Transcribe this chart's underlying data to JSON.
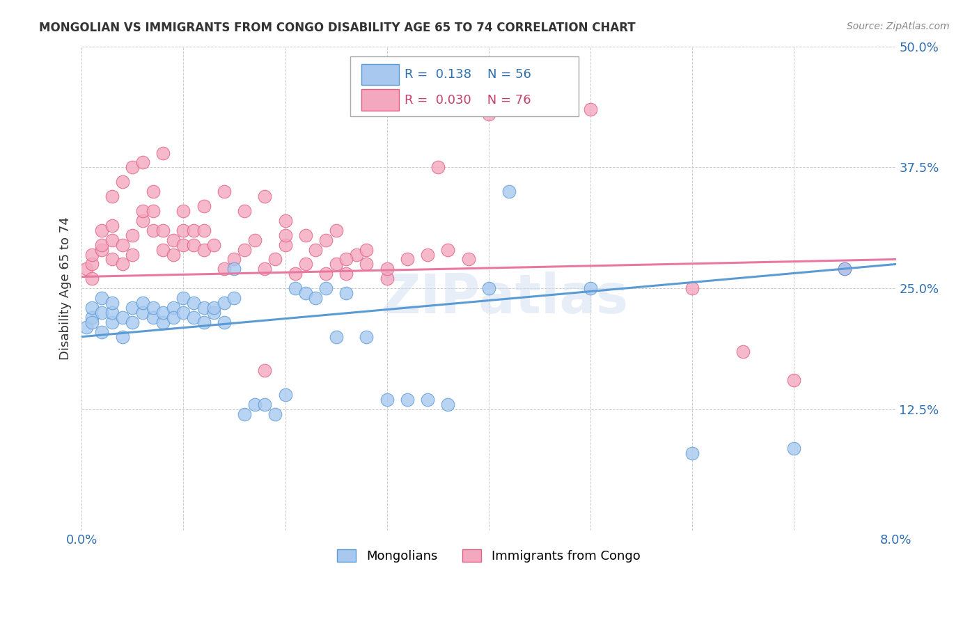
{
  "title": "MONGOLIAN VS IMMIGRANTS FROM CONGO DISABILITY AGE 65 TO 74 CORRELATION CHART",
  "source": "Source: ZipAtlas.com",
  "ylabel_label": "Disability Age 65 to 74",
  "xlim": [
    0.0,
    0.08
  ],
  "ylim": [
    0.0,
    0.5
  ],
  "xticks": [
    0.0,
    0.01,
    0.02,
    0.03,
    0.04,
    0.05,
    0.06,
    0.07,
    0.08
  ],
  "xticklabels": [
    "0.0%",
    "",
    "",
    "",
    "",
    "",
    "",
    "",
    "8.0%"
  ],
  "yticks": [
    0.0,
    0.125,
    0.25,
    0.375,
    0.5
  ],
  "yticklabels": [
    "",
    "12.5%",
    "25.0%",
    "37.5%",
    "50.0%"
  ],
  "mongolian_color": "#a8c8f0",
  "mongolian_edge": "#5b9bd5",
  "congo_color": "#f4a8c0",
  "congo_edge": "#e06080",
  "mongolian_R": 0.138,
  "mongolian_N": 56,
  "congo_R": 0.03,
  "congo_N": 76,
  "mongolian_line_color": "#5b9bd5",
  "congo_line_color": "#e878a0",
  "grid_color": "#cccccc",
  "background_color": "#ffffff",
  "watermark": "ZIPatlas",
  "mongolian_line_x0": 0.0,
  "mongolian_line_y0": 0.2,
  "mongolian_line_x1": 0.08,
  "mongolian_line_y1": 0.275,
  "congo_line_x0": 0.0,
  "congo_line_y0": 0.262,
  "congo_line_x1": 0.08,
  "congo_line_y1": 0.28,
  "mongolian_x": [
    0.0005,
    0.001,
    0.001,
    0.001,
    0.002,
    0.002,
    0.002,
    0.003,
    0.003,
    0.003,
    0.004,
    0.004,
    0.005,
    0.005,
    0.006,
    0.006,
    0.007,
    0.007,
    0.008,
    0.008,
    0.009,
    0.009,
    0.01,
    0.01,
    0.011,
    0.011,
    0.012,
    0.012,
    0.013,
    0.013,
    0.014,
    0.014,
    0.015,
    0.015,
    0.016,
    0.017,
    0.018,
    0.019,
    0.02,
    0.021,
    0.022,
    0.023,
    0.024,
    0.025,
    0.026,
    0.028,
    0.03,
    0.032,
    0.034,
    0.036,
    0.04,
    0.042,
    0.05,
    0.06,
    0.07,
    0.075
  ],
  "mongolian_y": [
    0.21,
    0.22,
    0.23,
    0.215,
    0.225,
    0.24,
    0.205,
    0.215,
    0.225,
    0.235,
    0.2,
    0.22,
    0.23,
    0.215,
    0.225,
    0.235,
    0.22,
    0.23,
    0.215,
    0.225,
    0.23,
    0.22,
    0.24,
    0.225,
    0.235,
    0.22,
    0.23,
    0.215,
    0.225,
    0.23,
    0.215,
    0.235,
    0.27,
    0.24,
    0.12,
    0.13,
    0.13,
    0.12,
    0.14,
    0.25,
    0.245,
    0.24,
    0.25,
    0.2,
    0.245,
    0.2,
    0.135,
    0.135,
    0.135,
    0.13,
    0.25,
    0.35,
    0.25,
    0.08,
    0.085,
    0.27
  ],
  "congo_x": [
    0.0005,
    0.001,
    0.001,
    0.001,
    0.002,
    0.002,
    0.002,
    0.003,
    0.003,
    0.003,
    0.004,
    0.004,
    0.005,
    0.005,
    0.006,
    0.006,
    0.007,
    0.007,
    0.008,
    0.008,
    0.009,
    0.009,
    0.01,
    0.01,
    0.011,
    0.011,
    0.012,
    0.012,
    0.013,
    0.014,
    0.015,
    0.016,
    0.017,
    0.018,
    0.019,
    0.02,
    0.021,
    0.022,
    0.023,
    0.024,
    0.025,
    0.026,
    0.027,
    0.028,
    0.03,
    0.032,
    0.034,
    0.036,
    0.038,
    0.02,
    0.025,
    0.03,
    0.035,
    0.04,
    0.05,
    0.06,
    0.065,
    0.07,
    0.075,
    0.018,
    0.003,
    0.004,
    0.005,
    0.006,
    0.007,
    0.008,
    0.01,
    0.012,
    0.014,
    0.016,
    0.018,
    0.02,
    0.022,
    0.024,
    0.026,
    0.028
  ],
  "congo_y": [
    0.27,
    0.275,
    0.285,
    0.26,
    0.29,
    0.31,
    0.295,
    0.28,
    0.3,
    0.315,
    0.295,
    0.275,
    0.305,
    0.285,
    0.32,
    0.33,
    0.31,
    0.33,
    0.29,
    0.31,
    0.3,
    0.285,
    0.295,
    0.31,
    0.295,
    0.31,
    0.29,
    0.31,
    0.295,
    0.27,
    0.28,
    0.29,
    0.3,
    0.27,
    0.28,
    0.295,
    0.265,
    0.275,
    0.29,
    0.265,
    0.275,
    0.265,
    0.285,
    0.29,
    0.26,
    0.28,
    0.285,
    0.29,
    0.28,
    0.32,
    0.31,
    0.27,
    0.375,
    0.43,
    0.435,
    0.25,
    0.185,
    0.155,
    0.27,
    0.165,
    0.345,
    0.36,
    0.375,
    0.38,
    0.35,
    0.39,
    0.33,
    0.335,
    0.35,
    0.33,
    0.345,
    0.305,
    0.305,
    0.3,
    0.28,
    0.275
  ]
}
